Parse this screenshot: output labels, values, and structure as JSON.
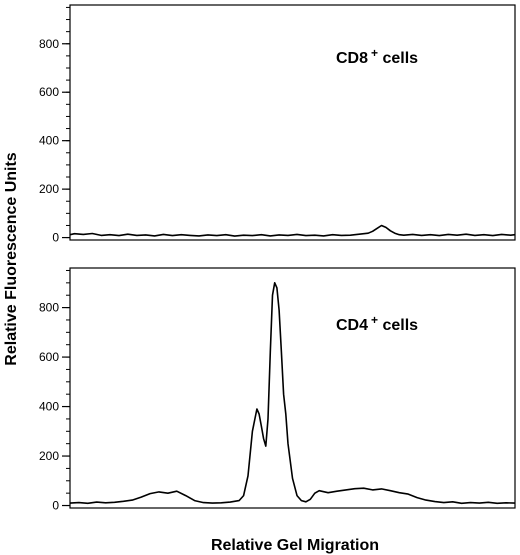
{
  "figure": {
    "ylabel": "Relative Fluorescence Units",
    "xlabel": "Relative Gel Migration"
  },
  "chart_data": [
    {
      "type": "line",
      "panel": "top",
      "label_main": "CD8",
      "label_sup": "+",
      "label_rest": " cells",
      "xlim": [
        0,
        100
      ],
      "ylim": [
        -10,
        960
      ],
      "yticks": [
        0,
        200,
        400,
        600,
        800
      ],
      "ytick_labels": [
        "0",
        "200",
        "400",
        "600",
        "800"
      ],
      "y_minor_step": 50,
      "series": [
        {
          "x": [
            0,
            1,
            3,
            5,
            7,
            9,
            11,
            13,
            15,
            17,
            19,
            21,
            23,
            25,
            27,
            29,
            31,
            33,
            35,
            37,
            39,
            41,
            43,
            45,
            47,
            49,
            51,
            53,
            55,
            57,
            59,
            61,
            63,
            65,
            67,
            68,
            69,
            70,
            71,
            72,
            73,
            74,
            75,
            77,
            79,
            81,
            83,
            85,
            87,
            89,
            91,
            93,
            95,
            97,
            99,
            100
          ],
          "values": [
            12,
            16,
            13,
            17,
            9,
            12,
            8,
            14,
            9,
            11,
            7,
            13,
            8,
            12,
            9,
            7,
            11,
            8,
            12,
            6,
            10,
            8,
            12,
            7,
            11,
            9,
            13,
            8,
            10,
            7,
            12,
            9,
            10,
            14,
            18,
            26,
            38,
            50,
            42,
            28,
            18,
            12,
            10,
            13,
            9,
            12,
            8,
            13,
            10,
            14,
            9,
            12,
            8,
            13,
            10,
            12
          ]
        }
      ]
    },
    {
      "type": "line",
      "panel": "bottom",
      "label_main": "CD4",
      "label_sup": "+",
      "label_rest": " cells",
      "xlim": [
        0,
        100
      ],
      "ylim": [
        -10,
        960
      ],
      "yticks": [
        0,
        200,
        400,
        600,
        800
      ],
      "ytick_labels": [
        "0",
        "200",
        "400",
        "600",
        "800"
      ],
      "y_minor_step": 50,
      "series": [
        {
          "x": [
            0,
            2,
            4,
            6,
            8,
            10,
            12,
            14,
            16,
            18,
            20,
            22,
            24,
            26,
            28,
            30,
            32,
            34,
            36,
            38,
            39,
            40,
            41,
            42,
            42.5,
            43,
            43.5,
            44,
            44.5,
            45,
            45.5,
            46,
            46.5,
            47,
            47.5,
            48,
            48.5,
            49,
            50,
            51,
            52,
            53,
            54,
            55,
            56,
            58,
            60,
            62,
            64,
            66,
            68,
            70,
            72,
            74,
            76,
            78,
            80,
            82,
            84,
            86,
            88,
            90,
            92,
            94,
            96,
            98,
            100
          ],
          "values": [
            10,
            12,
            9,
            14,
            11,
            13,
            17,
            22,
            34,
            48,
            55,
            50,
            58,
            40,
            20,
            12,
            10,
            11,
            14,
            20,
            40,
            120,
            300,
            390,
            370,
            320,
            270,
            240,
            350,
            620,
            850,
            900,
            880,
            790,
            620,
            450,
            370,
            250,
            110,
            40,
            20,
            15,
            25,
            50,
            60,
            52,
            58,
            63,
            68,
            70,
            63,
            67,
            60,
            52,
            46,
            32,
            22,
            16,
            12,
            15,
            9,
            12,
            10,
            13,
            9,
            11,
            10
          ]
        }
      ]
    }
  ]
}
